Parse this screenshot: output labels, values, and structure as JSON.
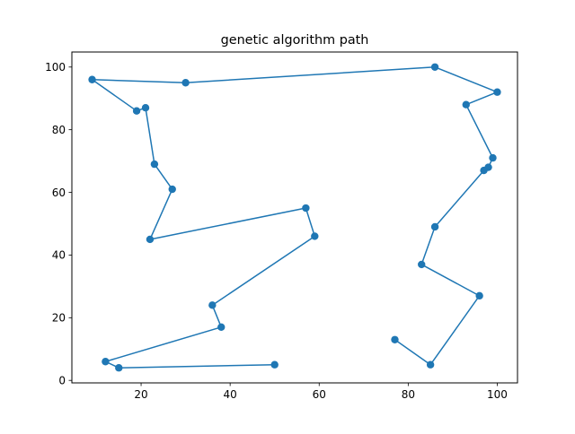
{
  "chart_data": {
    "type": "line",
    "title": "genetic algorithm path",
    "xlabel": "",
    "ylabel": "",
    "xlim": [
      4.45,
      104.55
    ],
    "ylim": [
      -0.8,
      104.8
    ],
    "xticks": [
      20,
      40,
      60,
      80,
      100
    ],
    "yticks": [
      0,
      20,
      40,
      60,
      80,
      100
    ],
    "grid": false,
    "color": "#1f77b4",
    "markers": "circle",
    "series": [
      {
        "x": [
          50,
          15,
          12,
          38,
          36,
          59,
          57,
          22,
          27,
          23,
          21,
          19,
          9,
          30,
          86,
          100,
          93,
          99,
          98,
          97,
          86,
          83,
          96,
          85,
          77
        ],
        "y": [
          5,
          4,
          6,
          17,
          24,
          46,
          55,
          45,
          61,
          69,
          87,
          86,
          96,
          95,
          100,
          92,
          88,
          71,
          68,
          67,
          49,
          37,
          27,
          5,
          13
        ]
      }
    ]
  }
}
